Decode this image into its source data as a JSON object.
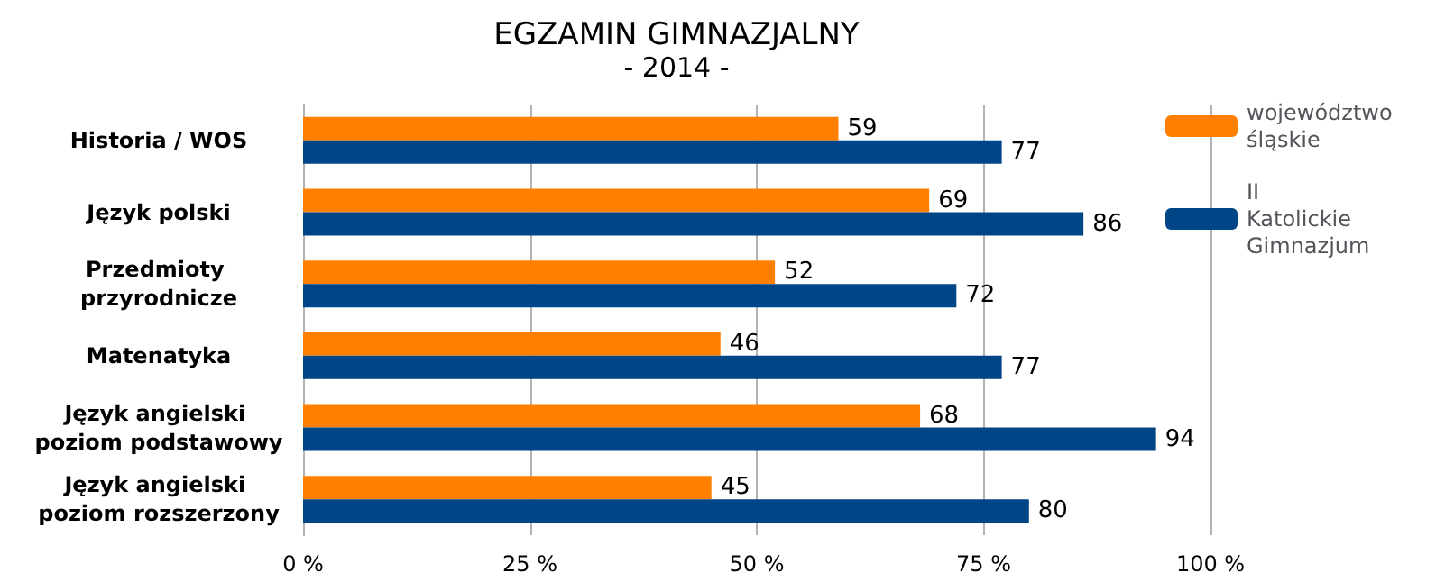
{
  "chart_data": {
    "type": "bar",
    "orientation": "horizontal",
    "title": "EGZAMIN GIMNAZJALNY",
    "subtitle": "- 2014 -",
    "categories": [
      "Historia / WOS",
      "Język polski",
      "Przedmioty przyrodnicze",
      "Matenatyka",
      "Język angielski poziom podstawowy",
      "Język angielski poziom rozszerzony"
    ],
    "series": [
      {
        "name": "województwo śląskie",
        "color": "#ff8000",
        "values": [
          59,
          69,
          52,
          46,
          68,
          45
        ]
      },
      {
        "name": "II Katolickie Gimnazjum",
        "color": "#004586",
        "values": [
          77,
          86,
          72,
          77,
          94,
          80
        ]
      }
    ],
    "xlim": [
      0,
      100
    ],
    "xticks": [
      {
        "value": 0,
        "label": "0 %"
      },
      {
        "value": 25,
        "label": "25 %"
      },
      {
        "value": 50,
        "label": "50 %"
      },
      {
        "value": 75,
        "label": "75 %"
      },
      {
        "value": 100,
        "label": "100 %"
      }
    ],
    "grid": "x",
    "legend": "right",
    "data_labels": true
  }
}
